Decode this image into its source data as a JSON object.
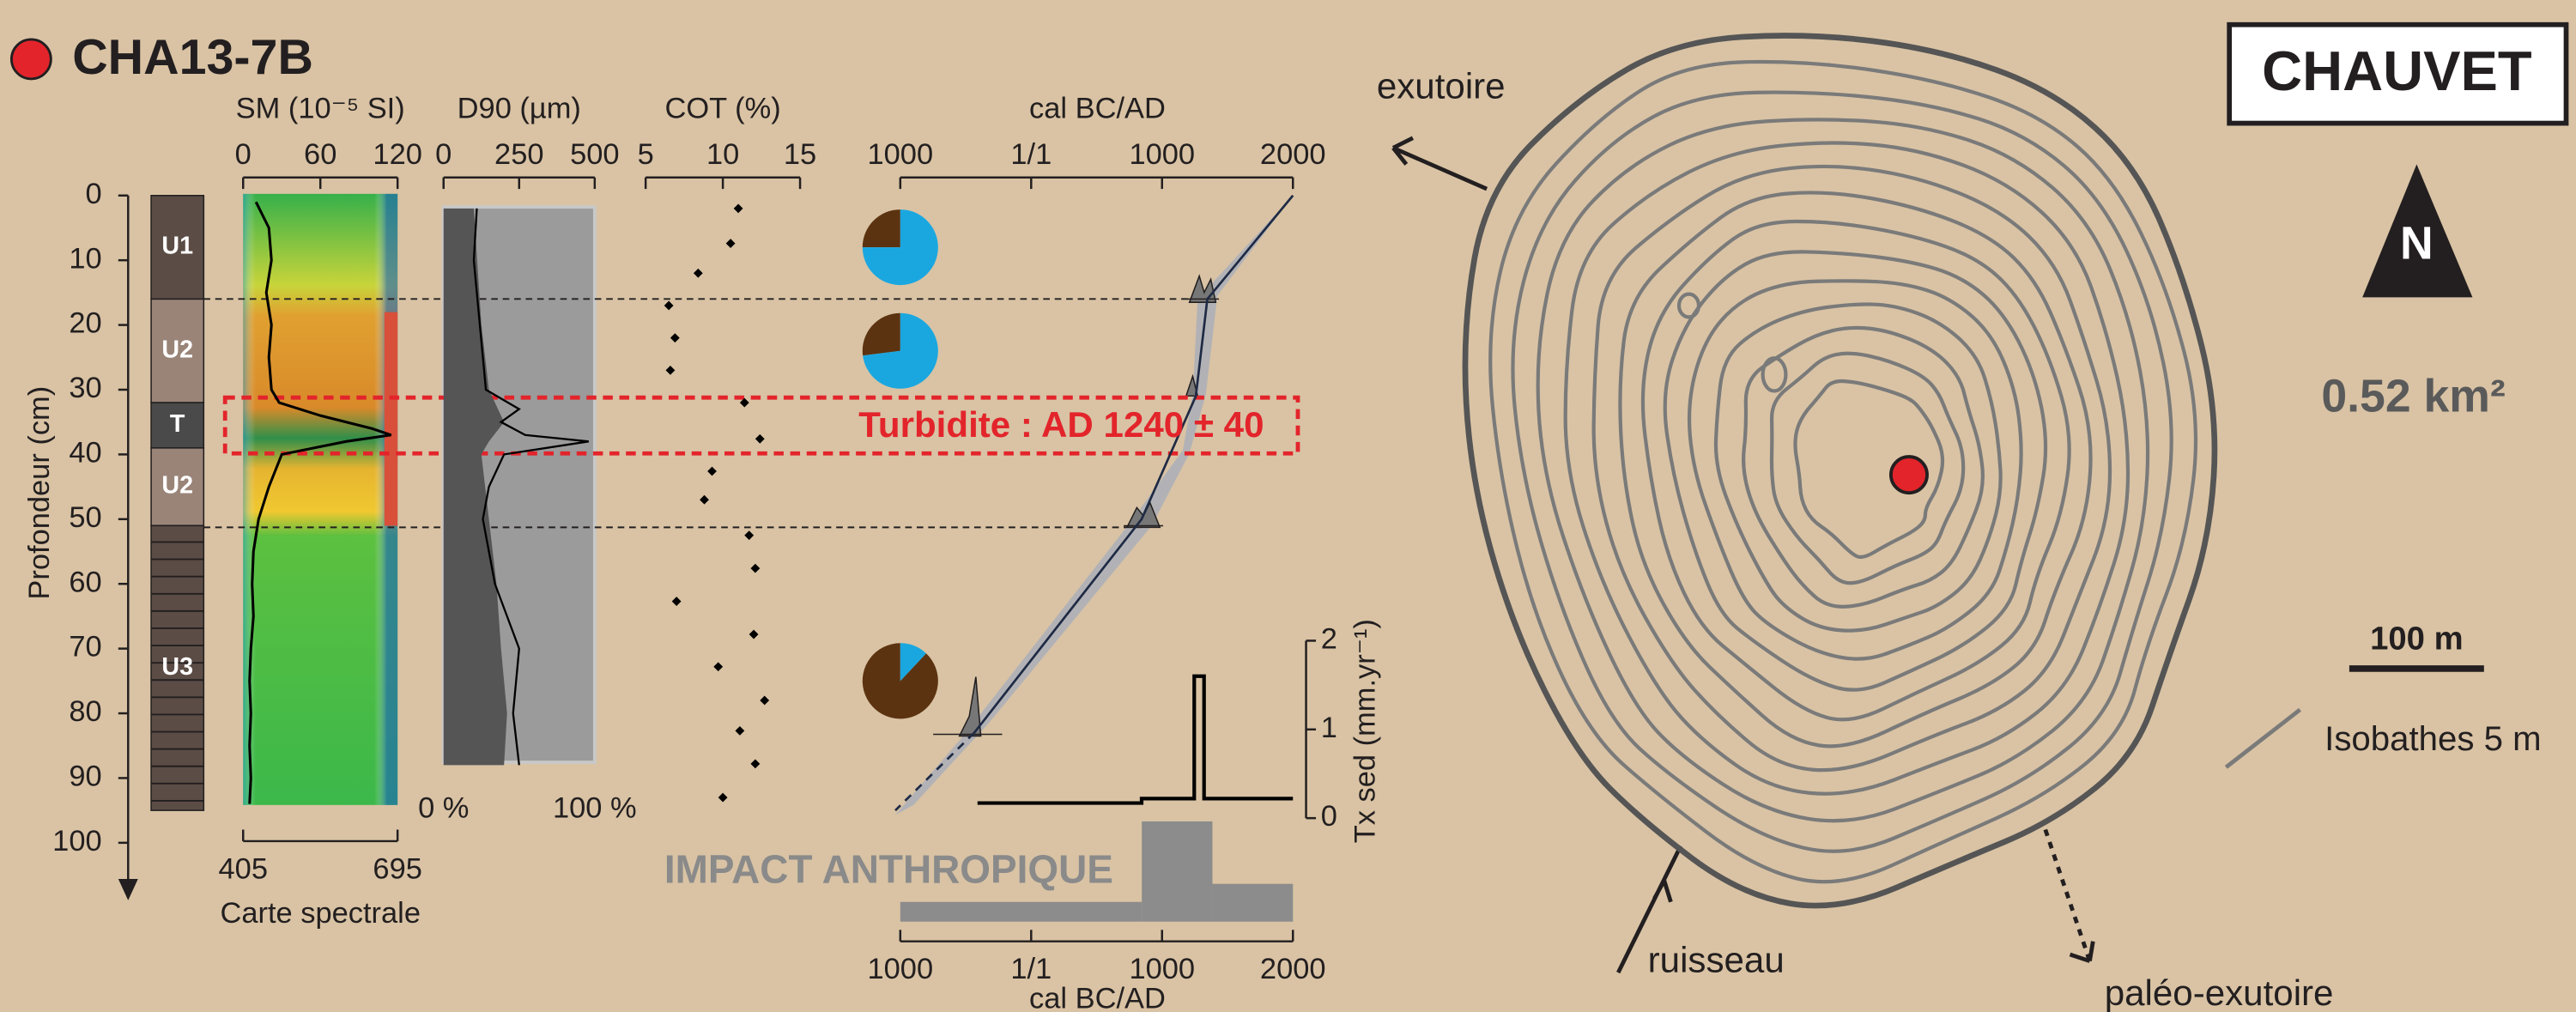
{
  "header": {
    "core": "CHA13-7B",
    "lake": "CHAUVET"
  },
  "lithology": [
    {
      "label": "U1",
      "top": 0,
      "bottom": 16
    },
    {
      "label": "U2",
      "top": 16,
      "bottom": 32
    },
    {
      "label": "T",
      "top": 32,
      "bottom": 39
    },
    {
      "label": "U2",
      "top": 39,
      "bottom": 51
    },
    {
      "label": "U3",
      "top": 51,
      "bottom": 95
    }
  ],
  "chart_data": [
    {
      "type": "line",
      "title": "SM (10⁻⁵ SI)",
      "ylabel": "Profondeur (cm)",
      "ylim": [
        0,
        100
      ],
      "yticks": [
        0,
        10,
        20,
        30,
        40,
        50,
        60,
        70,
        80,
        90,
        100
      ],
      "xlim": [
        0,
        120
      ],
      "xticks": [
        0,
        60,
        120
      ],
      "depth": [
        1,
        5,
        10,
        15,
        20,
        25,
        30,
        32,
        34,
        36,
        37,
        38,
        40,
        45,
        50,
        55,
        60,
        65,
        70,
        75,
        80,
        85,
        90,
        94
      ],
      "values": [
        10,
        20,
        22,
        18,
        22,
        20,
        22,
        28,
        60,
        100,
        115,
        80,
        30,
        20,
        12,
        8,
        7,
        8,
        6,
        5,
        6,
        5,
        6,
        5
      ],
      "color": "#000000"
    },
    {
      "type": "spectral",
      "xlabel": "Carte spectrale",
      "xlim": [
        405,
        695
      ],
      "xticks": [
        405,
        695
      ]
    },
    {
      "type": "area",
      "title": "D90 (µm)",
      "xlim": [
        0,
        500
      ],
      "xticks": [
        0,
        250,
        500
      ],
      "x2lim": [
        0,
        100
      ],
      "x2ticks": [
        {
          "value": 0,
          "label": "0 %"
        },
        {
          "value": 100,
          "label": "100 %"
        }
      ],
      "series": [
        {
          "axis": "x2",
          "color": "#555555",
          "depth": [
            2,
            20,
            30,
            35,
            38,
            40,
            50,
            60,
            70,
            80,
            88
          ],
          "values": [
            20,
            25,
            30,
            40,
            30,
            25,
            30,
            35,
            38,
            42,
            40
          ]
        },
        {
          "color": "#000000",
          "depth": [
            2,
            10,
            20,
            30,
            33,
            35,
            37,
            38,
            40,
            45,
            50,
            60,
            70,
            80,
            88
          ],
          "values": [
            110,
            100,
            120,
            140,
            250,
            190,
            270,
            480,
            200,
            150,
            130,
            170,
            250,
            230,
            250
          ]
        }
      ]
    },
    {
      "type": "scatter",
      "title": "COT (%)",
      "xlim": [
        5,
        15
      ],
      "xticks": [
        5,
        10,
        15
      ],
      "depth": [
        2,
        7.4,
        12,
        17,
        22,
        27,
        32,
        37.6,
        42.6,
        47,
        52.5,
        57.6,
        62.7,
        67.8,
        72.8,
        78,
        82.7,
        87.8,
        93
      ],
      "values": [
        11,
        10.5,
        8.4,
        6.5,
        6.9,
        6.6,
        11.4,
        12.4,
        9.3,
        8.8,
        11.7,
        12.1,
        7,
        12,
        9.7,
        12.7,
        11.1,
        12.1,
        10
      ],
      "color": "#000000"
    },
    {
      "type": "pie",
      "colors": [
        "#5c3310",
        "#1aa7e0"
      ],
      "pies": [
        {
          "depth": 8,
          "values": [
            25,
            75
          ]
        },
        {
          "depth": 24,
          "values": [
            27,
            73
          ]
        },
        {
          "depth": 75,
          "values": [
            88,
            12
          ]
        }
      ]
    },
    {
      "type": "age_depth",
      "title": "cal BC/AD",
      "xlim": [
        -1000,
        2000
      ],
      "xticks": [
        {
          "value": -1000,
          "label": "1000"
        },
        {
          "value": 0,
          "label": "1/1"
        },
        1000,
        2000
      ],
      "depth": [
        0,
        16,
        31,
        50,
        83
      ],
      "values": [
        2000,
        1346,
        1258,
        844,
        -435
      ],
      "extrapolated": {
        "depth": [
          83,
          95
        ],
        "values": [
          -435,
          -1038
        ]
      },
      "annotation": "Turbidite : AD 1240 ± 40",
      "color": "#1f2a44"
    },
    {
      "type": "step",
      "xlabel": "cal BC/AD",
      "xlim": [
        -1000,
        2000
      ],
      "xticks": [
        {
          "value": -1000,
          "label": "1000"
        },
        {
          "value": 0,
          "label": "1/1"
        },
        1000,
        2000
      ],
      "y2label": "Tx sed (mm.yr⁻¹)",
      "y2lim": [
        0,
        2
      ],
      "y2ticks": [
        0,
        1,
        2
      ],
      "x": [
        -410,
        844,
        844,
        1246,
        1246,
        1321,
        1321,
        2000
      ],
      "values": [
        0.17,
        0.17,
        0.22,
        0.22,
        1.6,
        1.6,
        0.22,
        0.22
      ],
      "annotation": "IMPACT ANTHROPIQUE",
      "color": "#000000"
    }
  ],
  "map": {
    "outlet": "exutoire",
    "stream": "ruisseau",
    "paleo_outlet": "paléo-exutoire",
    "north": "N",
    "area": "0.52 km²",
    "scale": "100 m",
    "isobath_legend": "Isobathes 5 m"
  }
}
